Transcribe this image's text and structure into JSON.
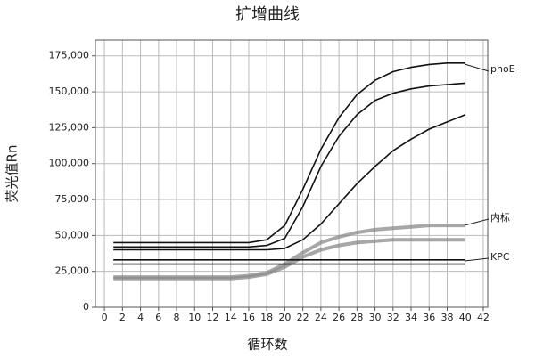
{
  "chart_data": {
    "type": "line",
    "title": "扩增曲线",
    "x_label": "循环数",
    "y_label": "荧光值Rn",
    "x": [
      1,
      2,
      4,
      6,
      8,
      10,
      12,
      14,
      16,
      18,
      20,
      22,
      24,
      26,
      28,
      30,
      32,
      34,
      36,
      38,
      40
    ],
    "series": [
      {
        "color": "#111111",
        "values": [
          45000,
          45000,
          45000,
          45000,
          45000,
          45000,
          45000,
          45000,
          45000,
          47000,
          57000,
          82000,
          110000,
          132000,
          148000,
          158000,
          164000,
          167000,
          169000,
          170000,
          170000
        ]
      },
      {
        "color": "#111111",
        "values": [
          42000,
          42000,
          42000,
          42000,
          42000,
          42000,
          42000,
          42000,
          42000,
          43000,
          48000,
          70000,
          98000,
          119000,
          134000,
          144000,
          149000,
          152000,
          154000,
          155000,
          156000
        ]
      },
      {
        "color": "#111111",
        "values": [
          40000,
          40000,
          40000,
          40000,
          40000,
          40000,
          40000,
          40000,
          40000,
          40000,
          41000,
          47000,
          58000,
          72000,
          86000,
          98000,
          109000,
          117000,
          124000,
          129000,
          134000
        ]
      },
      {
        "color": "#8a8a8a",
        "values": [
          21000,
          21000,
          21000,
          21000,
          21000,
          21000,
          21000,
          21000,
          22000,
          24000,
          30000,
          38000,
          45000,
          49000,
          52000,
          54000,
          55000,
          56000,
          57000,
          57000,
          57000
        ]
      },
      {
        "color": "#8a8a8a",
        "values": [
          20000,
          20000,
          20000,
          20000,
          20000,
          20000,
          20000,
          20000,
          21000,
          23000,
          28000,
          35000,
          40000,
          43000,
          45000,
          46000,
          47000,
          47000,
          47000,
          47000,
          47000
        ]
      },
      {
        "color": "#111111",
        "values": [
          33000,
          33000,
          33000,
          33000,
          33000,
          33000,
          33000,
          33000,
          33000,
          33000,
          33000,
          33000,
          33000,
          33000,
          33000,
          33000,
          33000,
          33000,
          33000,
          33000,
          33000
        ]
      },
      {
        "color": "#111111",
        "values": [
          30000,
          30000,
          30000,
          30000,
          30000,
          30000,
          30000,
          30000,
          30000,
          30000,
          30000,
          30000,
          30000,
          30000,
          30000,
          30000,
          30000,
          30000,
          30000,
          30000,
          30000
        ]
      }
    ],
    "xlim": [
      -1,
      42.5
    ],
    "xticks": [
      0,
      2,
      4,
      6,
      8,
      10,
      12,
      14,
      16,
      18,
      20,
      22,
      24,
      26,
      28,
      30,
      32,
      34,
      36,
      38,
      40,
      42
    ],
    "ylim": [
      0,
      186000
    ],
    "yticks": [
      0,
      {
        "value": 25000,
        "label": "25,000"
      },
      {
        "value": 50000,
        "label": "50,000"
      },
      {
        "value": 75000,
        "label": "75,000"
      },
      {
        "value": 100000,
        "label": "100,000"
      },
      {
        "value": 125000,
        "label": "125,000"
      },
      {
        "value": 150000,
        "label": "150,000"
      },
      {
        "value": 175000,
        "label": "175,000"
      }
    ],
    "grid": true,
    "annotations": [
      {
        "text": "phoE"
      },
      {
        "text": "内标"
      },
      {
        "text": "KPC"
      }
    ]
  }
}
